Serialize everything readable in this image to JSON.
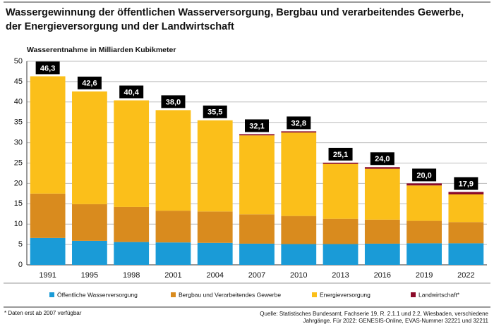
{
  "chart_data": {
    "type": "stacked_bar",
    "title": [
      "Wassergewinnung der öffentlichen Wasserversorgung, Bergbau und verarbeitendes Gewerbe,",
      "der Energieversorgung und der Landwirtschaft"
    ],
    "y_label": "Wasserentnahme in Milliarden Kubikmeter",
    "categories": [
      "1991",
      "1995",
      "1998",
      "2001",
      "2004",
      "2007",
      "2010",
      "2013",
      "2016",
      "2019",
      "2022"
    ],
    "series": [
      {
        "name": "Öffentliche Wasserversorgung",
        "color": "#1a9bd7",
        "values": [
          6.6,
          5.9,
          5.6,
          5.5,
          5.4,
          5.2,
          5.1,
          5.1,
          5.2,
          5.3,
          5.3
        ]
      },
      {
        "name": "Bergbau und Verarbeitendes Gewerbe",
        "color": "#d98b1e",
        "values": [
          10.9,
          9.0,
          8.6,
          7.8,
          7.7,
          7.2,
          6.9,
          6.2,
          5.9,
          5.5,
          5.2
        ]
      },
      {
        "name": "Energieversorgung",
        "color": "#fbbf1a",
        "values": [
          28.8,
          27.7,
          26.2,
          24.7,
          22.4,
          19.4,
          20.5,
          13.5,
          12.5,
          8.7,
          6.8
        ]
      },
      {
        "name": "Landwirtschaft*",
        "color": "#8b0a2a",
        "values": [
          null,
          null,
          null,
          null,
          null,
          0.3,
          0.3,
          0.3,
          0.4,
          0.5,
          0.6
        ]
      }
    ],
    "totals": {
      "values": [
        46.3,
        42.6,
        40.4,
        38.0,
        35.5,
        32.1,
        32.8,
        25.1,
        24.0,
        20.0,
        17.9
      ],
      "value_labels": [
        "46,3",
        "42,6",
        "40,4",
        "38,0",
        "35,5",
        "32,1",
        "32,8",
        "25,1",
        "24,0",
        "20,0",
        "17,9"
      ]
    },
    "ylim": [
      0,
      50
    ],
    "yticks": [
      0,
      5,
      10,
      15,
      20,
      25,
      30,
      35,
      40,
      45,
      50
    ],
    "grid": true,
    "footnote": "* Daten erst ab 2007 verfügbar",
    "source": [
      "Quelle: Statistisches Bundesamt, Fachserie 19, R. 2.1.1 und 2.2, Wiesbaden, verschiedene",
      "Jahrgänge. Für 2022: GENESIS-Online, EVAS-Nummer 32221 und 32211"
    ]
  }
}
